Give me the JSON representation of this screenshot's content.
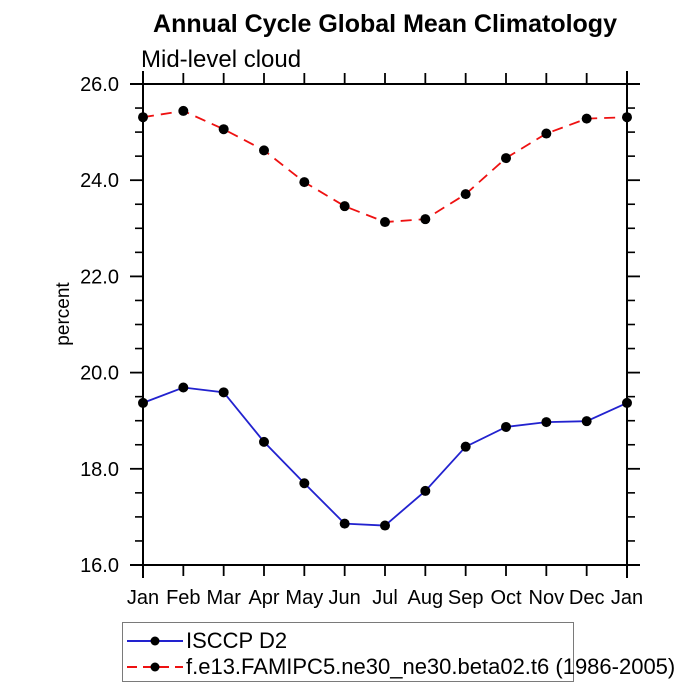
{
  "title": "Annual Cycle Global Mean Climatology",
  "chart_data": {
    "type": "line",
    "title": "Annual Cycle Global Mean Climatology",
    "subtitle": "Mid-level cloud",
    "ylabel": "percent",
    "xlabel": "",
    "categories": [
      "Jan",
      "Feb",
      "Mar",
      "Apr",
      "May",
      "Jun",
      "Jul",
      "Aug",
      "Sep",
      "Oct",
      "Nov",
      "Dec",
      "Jan"
    ],
    "series": [
      {
        "name": "ISCCP D2",
        "line_style": "solid",
        "color": "#2222cf",
        "marker": "filled-circle",
        "marker_color": "#000000",
        "values": [
          19.37,
          19.69,
          19.59,
          18.56,
          17.7,
          16.86,
          16.82,
          17.54,
          18.46,
          18.87,
          18.97,
          18.99,
          19.37
        ]
      },
      {
        "name": "f.e13.FAMIPC5.ne30_ne30.beta02.t6 (1986-2005)",
        "line_style": "dashed",
        "color": "#ee1111",
        "marker": "filled-circle",
        "marker_color": "#000000",
        "values": [
          25.31,
          25.44,
          25.06,
          24.62,
          23.96,
          23.46,
          23.13,
          23.19,
          23.71,
          24.46,
          24.97,
          25.28,
          25.31
        ]
      }
    ],
    "ylim": [
      16.0,
      26.0
    ],
    "ytick_labels": [
      "16.0",
      "18.0",
      "20.0",
      "22.0",
      "24.0",
      "26.0"
    ],
    "ytick_major_step": 2.0,
    "ytick_minor_step": 0.5,
    "grid": false,
    "legend_position": "bottom-left",
    "axis_color": "#000000"
  }
}
